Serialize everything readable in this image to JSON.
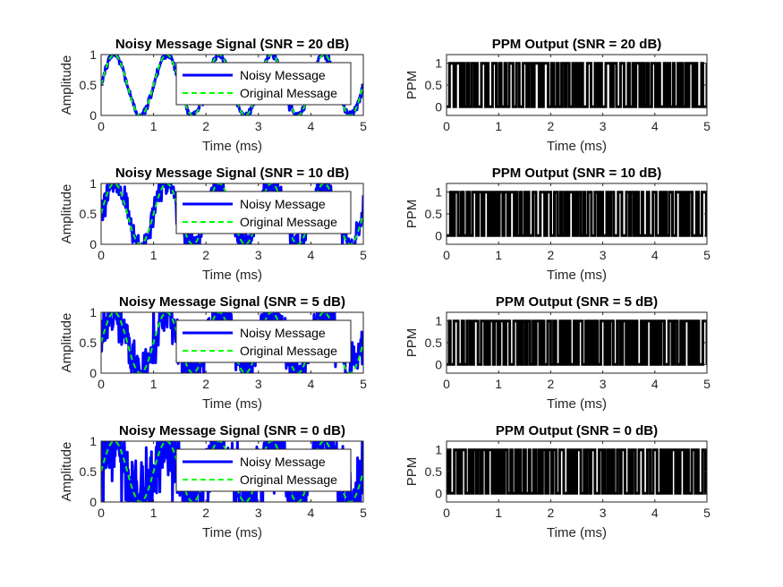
{
  "chart_data": [
    {
      "type": "line",
      "title": "Noisy Message Signal (SNR = 20 dB)",
      "xlabel": "Time (ms)",
      "ylabel": "Amplitude",
      "xlim": [
        0,
        5
      ],
      "ylim": [
        0,
        1
      ],
      "xticks": [
        "0",
        "1",
        "2",
        "3",
        "4",
        "5"
      ],
      "yticks": [
        "0",
        "0.5",
        "1"
      ],
      "legend": "top-right",
      "snr_db": 20,
      "series": [
        {
          "name": "Noisy Message",
          "color": "#0000ff",
          "style": "solid"
        },
        {
          "name": "Original Message",
          "color": "#00ff00",
          "style": "dashed"
        }
      ],
      "message_signal": {
        "function": "0.5 + 0.5*sin(2*pi*f*t)",
        "frequency_khz": 1
      }
    },
    {
      "type": "line",
      "title": "PPM Output (SNR = 20 dB)",
      "xlabel": "Time (ms)",
      "ylabel": "PPM",
      "xlim": [
        0,
        5
      ],
      "ylim": [
        -0.2,
        1.2
      ],
      "xticks": [
        "0",
        "1",
        "2",
        "3",
        "4",
        "5"
      ],
      "yticks": [
        "0",
        "0.5",
        "1"
      ],
      "snr_db": 20,
      "series": [
        {
          "color": "#000000",
          "levels": [
            0,
            1
          ]
        }
      ]
    },
    {
      "type": "line",
      "title": "Noisy Message Signal (SNR = 10 dB)",
      "xlabel": "Time (ms)",
      "ylabel": "Amplitude",
      "xlim": [
        0,
        5
      ],
      "ylim": [
        0,
        1
      ],
      "xticks": [
        "0",
        "1",
        "2",
        "3",
        "4",
        "5"
      ],
      "yticks": [
        "0",
        "0.5",
        "1"
      ],
      "legend": "top-right",
      "snr_db": 10,
      "series": [
        {
          "name": "Noisy Message",
          "color": "#0000ff",
          "style": "solid"
        },
        {
          "name": "Original Message",
          "color": "#00ff00",
          "style": "dashed"
        }
      ],
      "message_signal": {
        "function": "0.5 + 0.5*sin(2*pi*f*t)",
        "frequency_khz": 1
      }
    },
    {
      "type": "line",
      "title": "PPM Output (SNR = 10 dB)",
      "xlabel": "Time (ms)",
      "ylabel": "PPM",
      "xlim": [
        0,
        5
      ],
      "ylim": [
        -0.2,
        1.2
      ],
      "xticks": [
        "0",
        "1",
        "2",
        "3",
        "4",
        "5"
      ],
      "yticks": [
        "0",
        "0.5",
        "1"
      ],
      "snr_db": 10,
      "series": [
        {
          "color": "#000000",
          "levels": [
            0,
            1
          ]
        }
      ]
    },
    {
      "type": "line",
      "title": "Noisy Message Signal (SNR = 5 dB)",
      "xlabel": "Time (ms)",
      "ylabel": "Amplitude",
      "xlim": [
        0,
        5
      ],
      "ylim": [
        0,
        1
      ],
      "xticks": [
        "0",
        "1",
        "2",
        "3",
        "4",
        "5"
      ],
      "yticks": [
        "0",
        "0.5",
        "1"
      ],
      "legend": "top-right",
      "snr_db": 5,
      "series": [
        {
          "name": "Noisy Message",
          "color": "#0000ff",
          "style": "solid"
        },
        {
          "name": "Original Message",
          "color": "#00ff00",
          "style": "dashed"
        }
      ],
      "message_signal": {
        "function": "0.5 + 0.5*sin(2*pi*f*t)",
        "frequency_khz": 1
      }
    },
    {
      "type": "line",
      "title": "PPM Output (SNR = 5 dB)",
      "xlabel": "Time (ms)",
      "ylabel": "PPM",
      "xlim": [
        0,
        5
      ],
      "ylim": [
        -0.2,
        1.2
      ],
      "xticks": [
        "0",
        "1",
        "2",
        "3",
        "4",
        "5"
      ],
      "yticks": [
        "0",
        "0.5",
        "1"
      ],
      "snr_db": 5,
      "series": [
        {
          "color": "#000000",
          "levels": [
            0,
            1
          ]
        }
      ]
    },
    {
      "type": "line",
      "title": "Noisy Message Signal (SNR = 0 dB)",
      "xlabel": "Time (ms)",
      "ylabel": "Amplitude",
      "xlim": [
        0,
        5
      ],
      "ylim": [
        0,
        1
      ],
      "xticks": [
        "0",
        "1",
        "2",
        "3",
        "4",
        "5"
      ],
      "yticks": [
        "0",
        "0.5",
        "1"
      ],
      "legend": "top-right",
      "snr_db": 0,
      "series": [
        {
          "name": "Noisy Message",
          "color": "#0000ff",
          "style": "solid"
        },
        {
          "name": "Original Message",
          "color": "#00ff00",
          "style": "dashed"
        }
      ],
      "message_signal": {
        "function": "0.5 + 0.5*sin(2*pi*f*t)",
        "frequency_khz": 1
      }
    },
    {
      "type": "line",
      "title": "PPM Output (SNR = 0 dB)",
      "xlabel": "Time (ms)",
      "ylabel": "PPM",
      "xlim": [
        0,
        5
      ],
      "ylim": [
        -0.2,
        1.2
      ],
      "xticks": [
        "0",
        "1",
        "2",
        "3",
        "4",
        "5"
      ],
      "yticks": [
        "0",
        "0.5",
        "1"
      ],
      "snr_db": 0,
      "series": [
        {
          "color": "#000000",
          "levels": [
            0,
            1
          ]
        }
      ]
    }
  ]
}
